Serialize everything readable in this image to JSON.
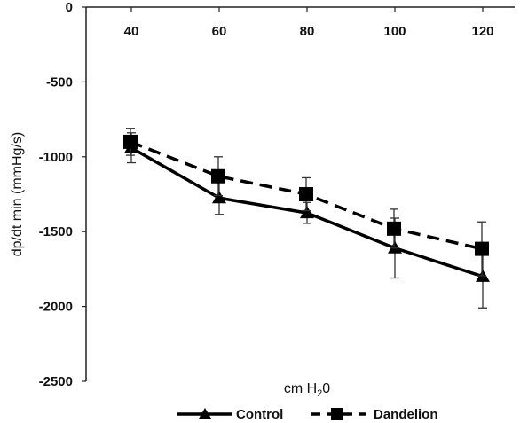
{
  "chart_data": {
    "type": "line",
    "ylabel": "dp/dt min (mmHg/s)",
    "xlabel": "cm H20",
    "xlabel_parts": {
      "main": "cm H",
      "sub": "2",
      "tail": "0"
    },
    "categories": [
      "40",
      "60",
      "80",
      "100",
      "120"
    ],
    "ylim": [
      -2500,
      0
    ],
    "yticks": [
      0,
      -500,
      -1000,
      -1500,
      -2000,
      -2500
    ],
    "ytick_labels": [
      "0",
      "-500",
      "-1000",
      "-1500",
      "-2000",
      "-2500"
    ],
    "x_axis_position": "top",
    "grid": false,
    "legend_position": "bottom",
    "series": [
      {
        "name": "Control",
        "values": [
          -940,
          -1275,
          -1375,
          -1610,
          -1800
        ],
        "error": [
          100,
          110,
          70,
          200,
          210
        ],
        "marker": "triangle",
        "line_style": "solid",
        "color": "#000000"
      },
      {
        "name": "Dandelion",
        "values": [
          -900,
          -1130,
          -1250,
          -1480,
          -1615
        ],
        "error": [
          90,
          130,
          110,
          130,
          180
        ],
        "marker": "square",
        "line_style": "dashed",
        "color": "#000000"
      }
    ]
  }
}
